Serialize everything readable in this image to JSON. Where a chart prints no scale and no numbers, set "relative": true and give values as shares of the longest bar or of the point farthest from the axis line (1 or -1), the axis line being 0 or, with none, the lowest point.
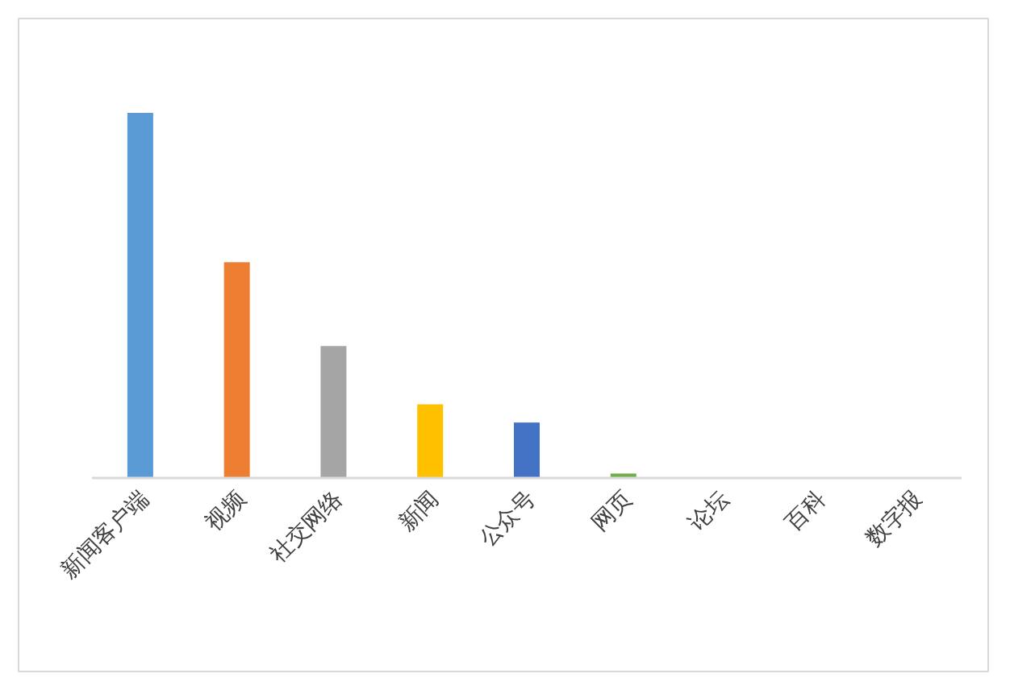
{
  "chart_data": {
    "type": "bar",
    "relative": true,
    "categories": [
      "新闻客户端",
      "视频",
      "社交网络",
      "新闻",
      "公众号",
      "网页",
      "论坛",
      "百科",
      "数字报"
    ],
    "values": [
      1,
      0.59,
      0.36,
      0.2,
      0.15,
      0.01,
      0,
      0,
      0
    ],
    "colors": [
      "#5b9bd5",
      "#ed7d31",
      "#a5a5a5",
      "#ffc000",
      "#4472c4",
      "#70ad47",
      "#255e91",
      "#9e480e",
      "#636363"
    ]
  }
}
